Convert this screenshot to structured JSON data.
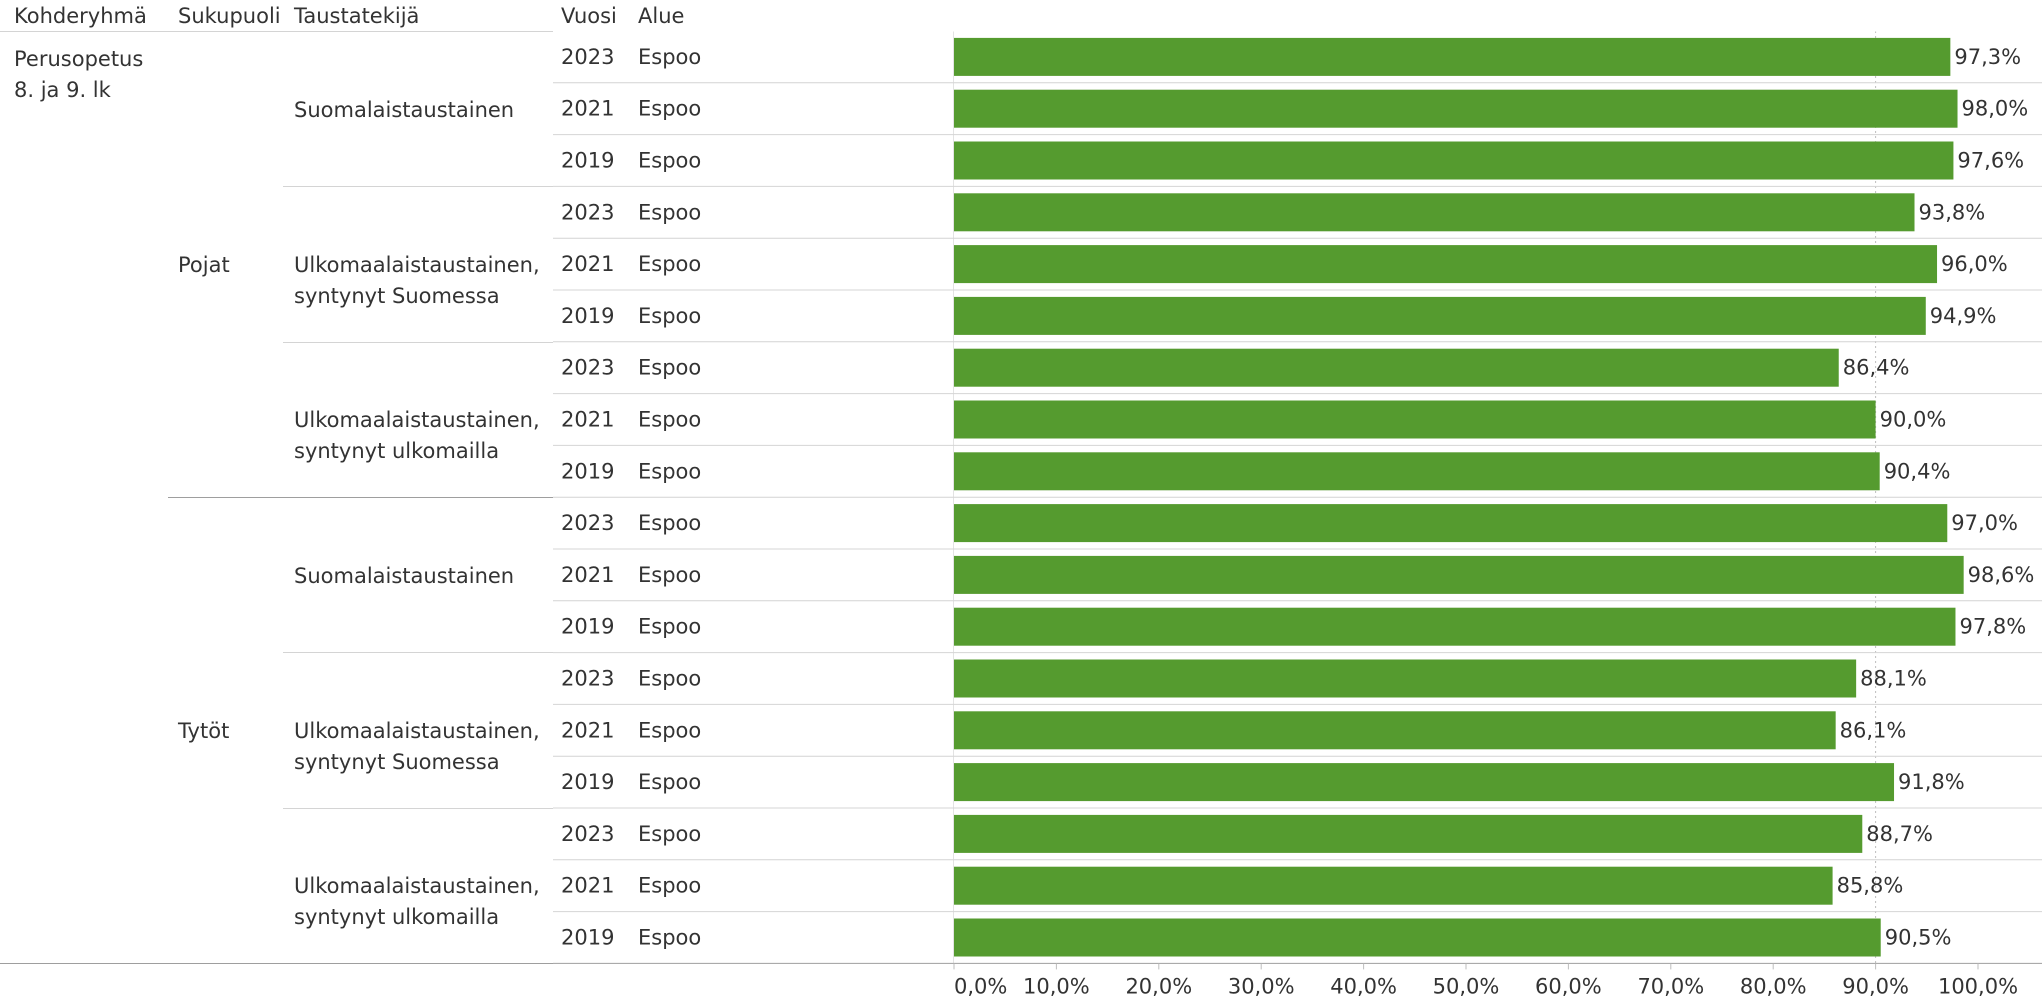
{
  "headers": {
    "kohderyhma": "Kohderyhmä",
    "sukupuoli": "Sukupuoli",
    "taustatekija": "Taustatekijä",
    "vuosi": "Vuosi",
    "alue": "Alue"
  },
  "kohderyhma": {
    "line1": "Perusopetus",
    "line2": "8. ja 9. lk"
  },
  "genders": [
    {
      "label": "Pojat"
    },
    {
      "label": "Tytöt"
    }
  ],
  "backgrounds": [
    {
      "line1": "Suomalaistaustainen",
      "line2": ""
    },
    {
      "line1": "Ulkomaalaistaustainen,",
      "line2": "syntynyt Suomessa"
    },
    {
      "line1": "Ulkomaalaistaustainen,",
      "line2": "syntynyt ulkomailla"
    },
    {
      "line1": "Suomalaistaustainen",
      "line2": ""
    },
    {
      "line1": "Ulkomaalaistaustainen,",
      "line2": "syntynyt Suomessa"
    },
    {
      "line1": "Ulkomaalaistaustainen,",
      "line2": "syntynyt ulkomailla"
    }
  ],
  "colors": {
    "bar": "#559b2f",
    "grid": "#d4d4d4",
    "text": "#333333"
  },
  "chart_data": {
    "type": "bar",
    "orientation": "horizontal",
    "xlim": [
      0,
      100
    ],
    "x_ticks": [
      0,
      10,
      20,
      30,
      40,
      50,
      60,
      70,
      80,
      90,
      100
    ],
    "x_tick_labels": [
      "0,0%",
      "10,0%",
      "20,0%",
      "30,0%",
      "40,0%",
      "50,0%",
      "60,0%",
      "70,0%",
      "80,0%",
      "90,0%",
      "100,0%"
    ],
    "rows": [
      {
        "year": "2023",
        "area": "Espoo",
        "value": 97.3,
        "label": "97,3%"
      },
      {
        "year": "2021",
        "area": "Espoo",
        "value": 98.0,
        "label": "98,0%"
      },
      {
        "year": "2019",
        "area": "Espoo",
        "value": 97.6,
        "label": "97,6%"
      },
      {
        "year": "2023",
        "area": "Espoo",
        "value": 93.8,
        "label": "93,8%"
      },
      {
        "year": "2021",
        "area": "Espoo",
        "value": 96.0,
        "label": "96,0%"
      },
      {
        "year": "2019",
        "area": "Espoo",
        "value": 94.9,
        "label": "94,9%"
      },
      {
        "year": "2023",
        "area": "Espoo",
        "value": 86.4,
        "label": "86,4%"
      },
      {
        "year": "2021",
        "area": "Espoo",
        "value": 90.0,
        "label": "90,0%"
      },
      {
        "year": "2019",
        "area": "Espoo",
        "value": 90.4,
        "label": "90,4%"
      },
      {
        "year": "2023",
        "area": "Espoo",
        "value": 97.0,
        "label": "97,0%"
      },
      {
        "year": "2021",
        "area": "Espoo",
        "value": 98.6,
        "label": "98,6%"
      },
      {
        "year": "2019",
        "area": "Espoo",
        "value": 97.8,
        "label": "97,8%"
      },
      {
        "year": "2023",
        "area": "Espoo",
        "value": 88.1,
        "label": "88,1%"
      },
      {
        "year": "2021",
        "area": "Espoo",
        "value": 86.1,
        "label": "86,1%"
      },
      {
        "year": "2019",
        "area": "Espoo",
        "value": 91.8,
        "label": "91,8%"
      },
      {
        "year": "2023",
        "area": "Espoo",
        "value": 88.7,
        "label": "88,7%"
      },
      {
        "year": "2021",
        "area": "Espoo",
        "value": 85.8,
        "label": "85,8%"
      },
      {
        "year": "2019",
        "area": "Espoo",
        "value": 90.5,
        "label": "90,5%"
      }
    ]
  }
}
